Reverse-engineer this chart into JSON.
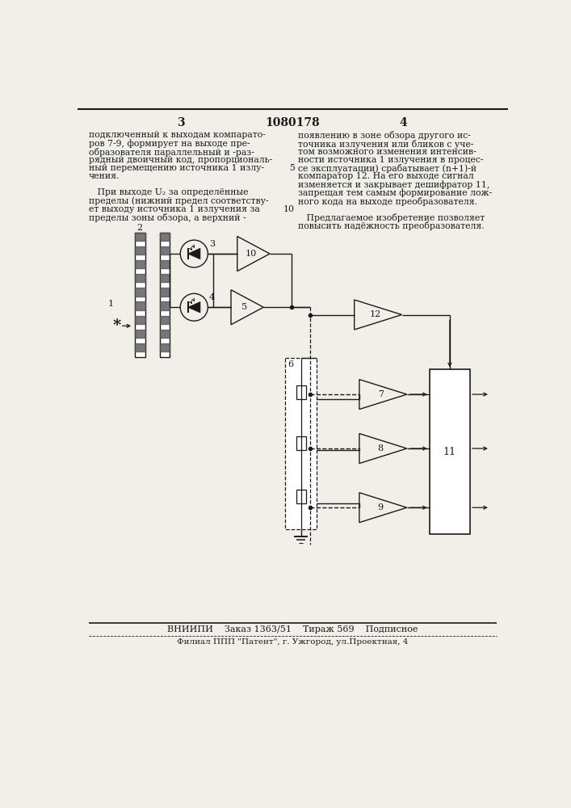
{
  "bg_color": "#f2efe8",
  "black": "#1a1a1a",
  "title": "1080178",
  "page_left": "3",
  "page_right": "4",
  "footer1": "ВНИИПИ    Заказ 1363/51    Тираж 569    Подписное",
  "footer2": "Филиал ППП \"Патент\", г. Ужгород, ул.Проектная, 4",
  "text_left": [
    "подключенный к выходам компарато-",
    "ров 7-9, формирует на выходе пре-",
    "образователя параллельный и -раз-",
    "рядный двоичный код, пропорциональ-",
    "ный перемещению источника 1 излу-",
    "чения.",
    "",
    "   При выходе U₂ за определённые",
    "пределы (нижний предел соответству-",
    "ет выходу источника 1 излучения за",
    "пределы зоны обзора, а верхний -"
  ],
  "text_right": [
    "появлению в зоне обзора другого ис-",
    "точника излучения или бликов с уче-",
    "том возможного изменения интенсив-",
    "ности источника 1 излучения в процес-",
    "се эксплуатации) срабатывает (n+1)-й",
    "компаратор 12. На его выходе сигнал",
    "изменяется и закрывает дешифратор 11,",
    "запрещая тем самым формирование лож-",
    "ного кода на выходе преобразователя.",
    "",
    "   Предлагаемое изобретение позволяет",
    "повысить надёжность преобразователя."
  ],
  "linenum_5_row": 4,
  "linenum_10_row": 9
}
